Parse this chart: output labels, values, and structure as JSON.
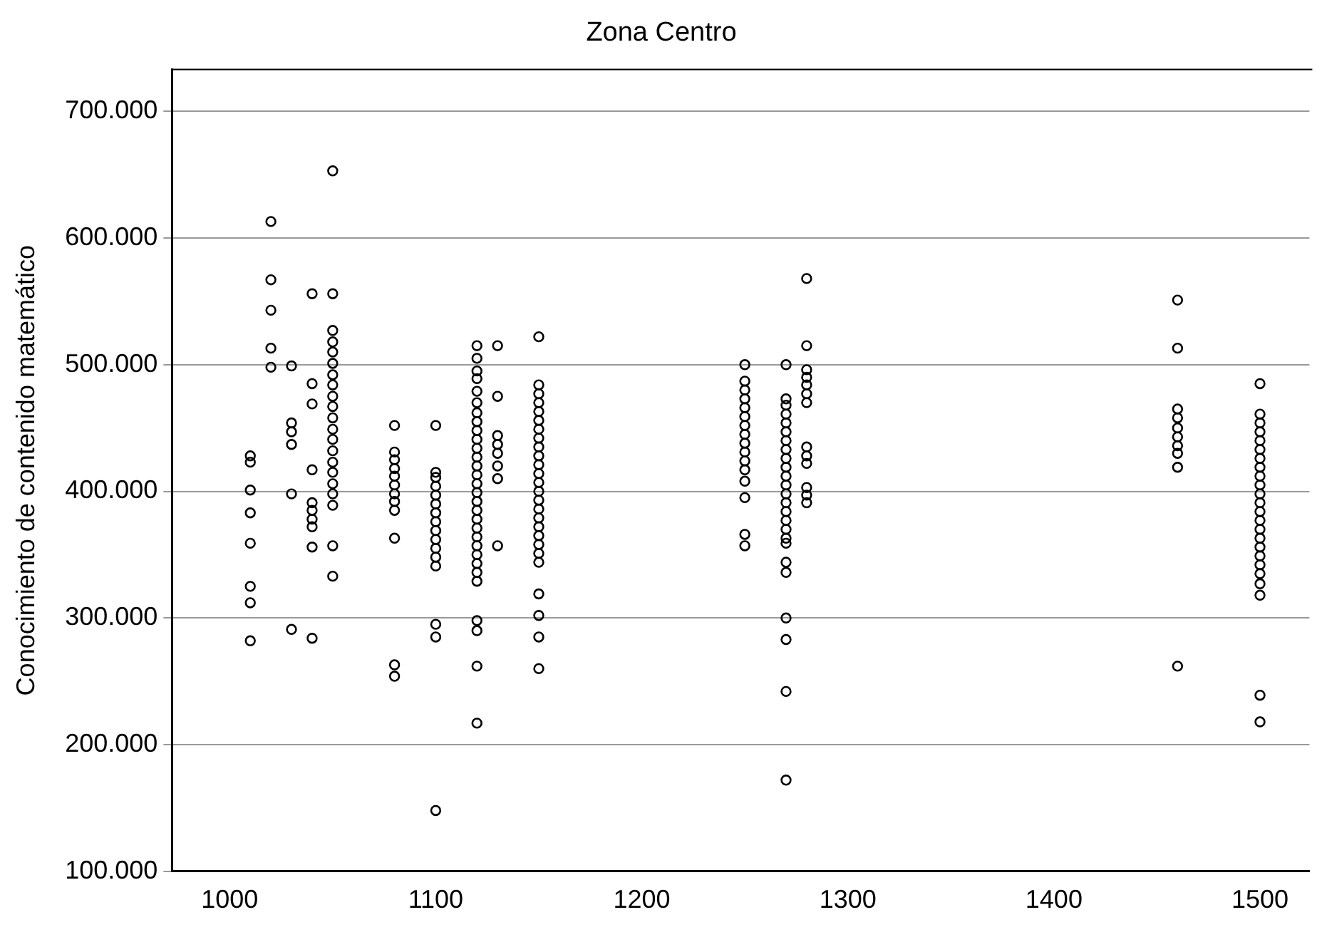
{
  "chart_data": {
    "type": "scatter",
    "title": "Zona Centro",
    "ylabel": "Conocimiento de contenido matemático",
    "x": [
      1010,
      1010,
      1010,
      1010,
      1010,
      1010,
      1010,
      1010,
      1020,
      1020,
      1020,
      1020,
      1020,
      1030,
      1030,
      1030,
      1030,
      1030,
      1030,
      1040,
      1040,
      1040,
      1040,
      1040,
      1040,
      1040,
      1040,
      1040,
      1040,
      1050,
      1050,
      1050,
      1050,
      1050,
      1050,
      1050,
      1050,
      1050,
      1050,
      1050,
      1050,
      1050,
      1050,
      1050,
      1050,
      1050,
      1050,
      1050,
      1050,
      1050,
      1080,
      1080,
      1080,
      1080,
      1080,
      1080,
      1080,
      1080,
      1080,
      1080,
      1080,
      1080,
      1100,
      1100,
      1100,
      1100,
      1100,
      1100,
      1100,
      1100,
      1100,
      1100,
      1100,
      1100,
      1100,
      1100,
      1100,
      1100,
      1120,
      1120,
      1120,
      1120,
      1120,
      1120,
      1120,
      1120,
      1120,
      1120,
      1120,
      1120,
      1120,
      1120,
      1120,
      1120,
      1120,
      1120,
      1120,
      1120,
      1120,
      1120,
      1120,
      1120,
      1120,
      1120,
      1120,
      1120,
      1120,
      1120,
      1130,
      1130,
      1130,
      1130,
      1130,
      1130,
      1130,
      1130,
      1150,
      1150,
      1150,
      1150,
      1150,
      1150,
      1150,
      1150,
      1150,
      1150,
      1150,
      1150,
      1150,
      1150,
      1150,
      1150,
      1150,
      1150,
      1150,
      1150,
      1150,
      1150,
      1150,
      1150,
      1150,
      1150,
      1250,
      1250,
      1250,
      1250,
      1250,
      1250,
      1250,
      1250,
      1250,
      1250,
      1250,
      1250,
      1250,
      1250,
      1250,
      1250,
      1270,
      1270,
      1270,
      1270,
      1270,
      1270,
      1270,
      1270,
      1270,
      1270,
      1270,
      1270,
      1270,
      1270,
      1270,
      1270,
      1270,
      1270,
      1270,
      1270,
      1270,
      1270,
      1270,
      1270,
      1270,
      1280,
      1280,
      1280,
      1280,
      1280,
      1280,
      1280,
      1280,
      1280,
      1280,
      1280,
      1280,
      1280,
      1460,
      1460,
      1460,
      1460,
      1460,
      1460,
      1460,
      1460,
      1460,
      1460,
      1500,
      1500,
      1500,
      1500,
      1500,
      1500,
      1500,
      1500,
      1500,
      1500,
      1500,
      1500,
      1500,
      1500,
      1500,
      1500,
      1500,
      1500,
      1500,
      1500,
      1500,
      1500,
      1500,
      1500
    ],
    "values": [
      428,
      423,
      401,
      383,
      359,
      325,
      312,
      282,
      613,
      567,
      543,
      513,
      498,
      499,
      454,
      447,
      437,
      398,
      291,
      556,
      485,
      469,
      417,
      391,
      385,
      378,
      372,
      356,
      284,
      653,
      556,
      527,
      518,
      510,
      501,
      492,
      484,
      475,
      467,
      458,
      449,
      441,
      432,
      423,
      415,
      406,
      398,
      389,
      357,
      333,
      452,
      431,
      425,
      418,
      412,
      405,
      398,
      392,
      385,
      363,
      263,
      254,
      452,
      415,
      411,
      404,
      397,
      390,
      383,
      376,
      369,
      362,
      355,
      348,
      341,
      295,
      285,
      148,
      515,
      505,
      495,
      489,
      479,
      470,
      462,
      455,
      448,
      441,
      434,
      427,
      420,
      413,
      406,
      399,
      392,
      385,
      378,
      371,
      364,
      357,
      350,
      343,
      336,
      329,
      298,
      290,
      262,
      217,
      515,
      475,
      444,
      437,
      430,
      420,
      410,
      357,
      522,
      484,
      477,
      470,
      463,
      456,
      449,
      442,
      435,
      428,
      421,
      414,
      407,
      400,
      393,
      386,
      379,
      372,
      365,
      358,
      351,
      344,
      319,
      302,
      285,
      260,
      500,
      487,
      480,
      473,
      466,
      459,
      452,
      445,
      438,
      431,
      424,
      417,
      408,
      395,
      366,
      357,
      500,
      473,
      468,
      461,
      454,
      447,
      440,
      433,
      426,
      419,
      412,
      405,
      398,
      391,
      384,
      377,
      370,
      363,
      359,
      344,
      336,
      300,
      283,
      242,
      172,
      568,
      515,
      496,
      490,
      484,
      477,
      470,
      435,
      428,
      422,
      403,
      397,
      391,
      551,
      513,
      465,
      458,
      450,
      443,
      436,
      430,
      419,
      262,
      485,
      461,
      454,
      447,
      440,
      433,
      426,
      419,
      412,
      405,
      398,
      391,
      384,
      377,
      370,
      363,
      356,
      349,
      342,
      335,
      327,
      318,
      239,
      218
    ],
    "color": "#000000",
    "marker": "circle",
    "grid": "y",
    "legend": false,
    "xlim": [
      972,
      1524
    ],
    "xticks": [
      1000,
      1100,
      1200,
      1300,
      1400,
      1500
    ],
    "ylim": [
      100,
      733
    ],
    "yticks": [
      {
        "value": 100,
        "label": "100.000"
      },
      {
        "value": 200,
        "label": "200.000"
      },
      {
        "value": 300,
        "label": "300.000"
      },
      {
        "value": 400,
        "label": "400.000"
      },
      {
        "value": 500,
        "label": "500.000"
      },
      {
        "value": 600,
        "label": "600.000"
      },
      {
        "value": 700,
        "label": "700.000"
      }
    ]
  }
}
